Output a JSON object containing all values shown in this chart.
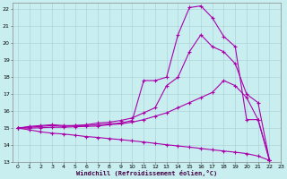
{
  "title": "",
  "xlabel": "Windchill (Refroidissement éolien,°C)",
  "ylabel": "",
  "xlim": [
    -0.5,
    23
  ],
  "ylim": [
    13,
    22.4
  ],
  "xticks": [
    0,
    1,
    2,
    3,
    4,
    5,
    6,
    7,
    8,
    9,
    10,
    11,
    12,
    13,
    14,
    15,
    16,
    17,
    18,
    19,
    20,
    21,
    22,
    23
  ],
  "yticks": [
    13,
    14,
    15,
    16,
    17,
    18,
    19,
    20,
    21,
    22
  ],
  "bg_color": "#c8eef0",
  "grid_color": "#a8cfd8",
  "line_color": "#aa00aa",
  "line1_x": [
    0,
    1,
    2,
    3,
    4,
    5,
    6,
    7,
    8,
    9,
    10,
    11,
    12,
    13,
    14,
    15,
    16,
    17,
    18,
    19,
    20,
    21,
    22
  ],
  "line1_y": [
    15.0,
    15.1,
    15.15,
    15.2,
    15.15,
    15.15,
    15.15,
    15.2,
    15.25,
    15.3,
    15.45,
    17.8,
    17.8,
    18.0,
    20.5,
    22.1,
    22.2,
    21.5,
    20.4,
    19.8,
    15.5,
    15.5,
    13.1
  ],
  "line2_x": [
    0,
    1,
    2,
    3,
    4,
    5,
    6,
    7,
    8,
    9,
    10,
    11,
    12,
    13,
    14,
    15,
    16,
    17,
    18,
    19,
    20,
    21,
    22
  ],
  "line2_y": [
    15.0,
    15.05,
    15.1,
    15.15,
    15.1,
    15.15,
    15.2,
    15.3,
    15.35,
    15.45,
    15.6,
    15.9,
    16.2,
    17.5,
    18.0,
    19.5,
    20.5,
    19.8,
    19.5,
    18.8,
    17.0,
    16.5,
    13.1
  ],
  "line3_x": [
    0,
    1,
    2,
    3,
    4,
    5,
    6,
    7,
    8,
    9,
    10,
    11,
    12,
    13,
    14,
    15,
    16,
    17,
    18,
    19,
    20,
    21,
    22
  ],
  "line3_y": [
    15.0,
    15.0,
    15.02,
    15.05,
    15.05,
    15.08,
    15.1,
    15.12,
    15.2,
    15.25,
    15.35,
    15.5,
    15.7,
    15.9,
    16.2,
    16.5,
    16.8,
    17.1,
    17.8,
    17.5,
    16.8,
    15.5,
    13.1
  ],
  "line4_x": [
    0,
    1,
    2,
    3,
    4,
    5,
    6,
    7,
    8,
    9,
    10,
    11,
    12,
    13,
    14,
    15,
    16,
    17,
    18,
    19,
    20,
    21,
    22
  ],
  "line4_y": [
    15.0,
    14.9,
    14.78,
    14.7,
    14.65,
    14.58,
    14.5,
    14.45,
    14.38,
    14.32,
    14.25,
    14.18,
    14.1,
    14.02,
    13.95,
    13.88,
    13.8,
    13.72,
    13.65,
    13.58,
    13.5,
    13.35,
    13.1
  ]
}
